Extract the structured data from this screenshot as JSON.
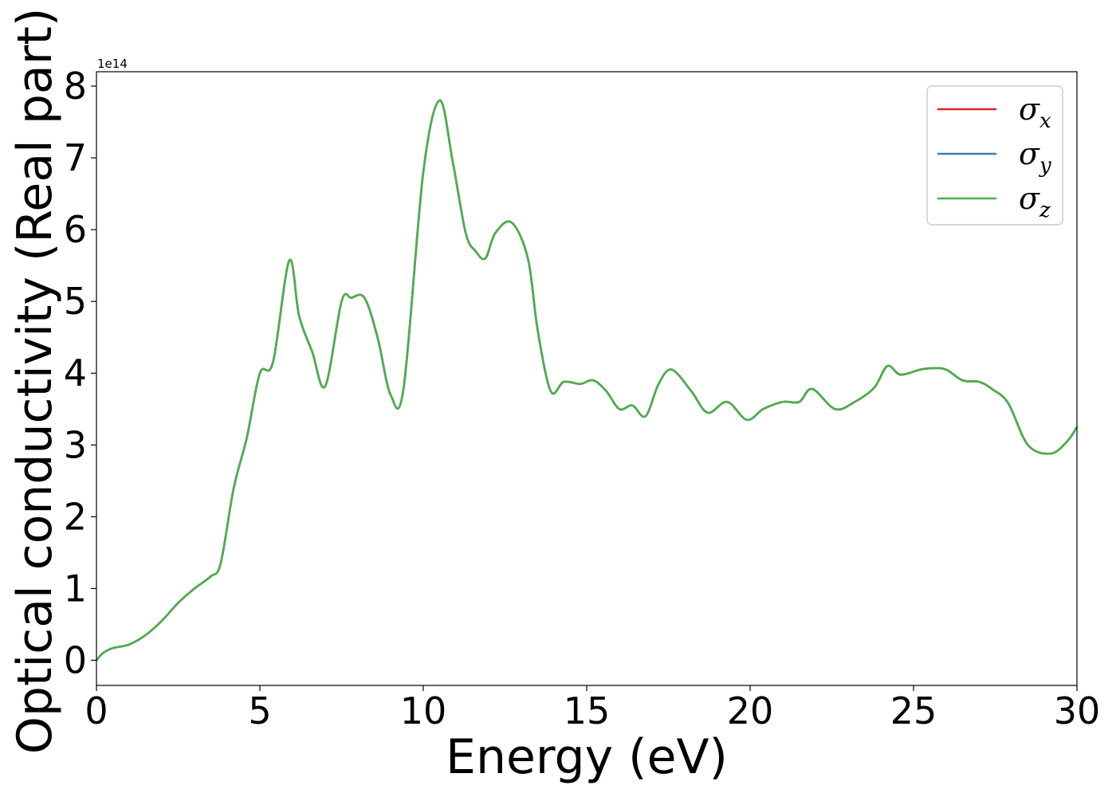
{
  "chart_data": {
    "type": "line",
    "xlabel": "Energy (eV)",
    "ylabel": "Optical conductivity (Real part)",
    "y_offset_label": "1e14",
    "xlim": [
      0,
      30
    ],
    "ylim": [
      -0.35,
      8.2
    ],
    "xticks": [
      0,
      5,
      10,
      15,
      20,
      25,
      30
    ],
    "xtick_labels": [
      "0",
      "5",
      "10",
      "15",
      "20",
      "25",
      "30"
    ],
    "yticks": [
      0,
      1,
      2,
      3,
      4,
      5,
      6,
      7,
      8
    ],
    "ytick_labels": [
      "0",
      "1",
      "2",
      "3",
      "4",
      "5",
      "6",
      "7",
      "8"
    ],
    "grid": false,
    "legend_position": "top-right",
    "x": [
      0,
      0.2,
      0.5,
      1.0,
      1.5,
      2.0,
      2.5,
      3.0,
      3.5,
      3.8,
      4.2,
      4.6,
      5.0,
      5.4,
      5.9,
      6.2,
      6.6,
      7.0,
      7.5,
      7.8,
      8.2,
      8.6,
      9.0,
      9.4,
      10.0,
      10.5,
      10.9,
      11.3,
      11.6,
      11.9,
      12.2,
      12.7,
      13.2,
      13.5,
      13.9,
      14.3,
      14.8,
      15.2,
      15.6,
      16.0,
      16.4,
      16.8,
      17.2,
      17.6,
      18.2,
      18.7,
      19.3,
      19.9,
      20.4,
      21.0,
      21.5,
      21.9,
      22.6,
      23.2,
      23.8,
      24.2,
      24.6,
      25.2,
      25.6,
      26.0,
      26.5,
      27.0,
      27.4,
      27.9,
      28.5,
      29.2,
      29.7,
      30.0
    ],
    "series": [
      {
        "name": "σx",
        "values": [
          0.0,
          0.1,
          0.17,
          0.22,
          0.35,
          0.55,
          0.8,
          1.0,
          1.17,
          1.35,
          2.4,
          3.1,
          4.0,
          4.15,
          5.57,
          4.8,
          4.3,
          3.82,
          5.0,
          5.05,
          5.05,
          4.5,
          3.7,
          3.8,
          6.8,
          7.8,
          6.95,
          5.95,
          5.7,
          5.6,
          5.95,
          6.1,
          5.6,
          4.6,
          3.75,
          3.88,
          3.85,
          3.9,
          3.75,
          3.5,
          3.55,
          3.4,
          3.85,
          4.05,
          3.75,
          3.45,
          3.6,
          3.35,
          3.5,
          3.6,
          3.6,
          3.78,
          3.5,
          3.6,
          3.8,
          4.1,
          3.98,
          4.05,
          4.07,
          4.05,
          3.9,
          3.88,
          3.78,
          3.58,
          3.0,
          2.88,
          3.05,
          3.25
        ],
        "color": "#d62728"
      },
      {
        "name": "σy",
        "values": [
          0.0,
          0.1,
          0.17,
          0.22,
          0.35,
          0.55,
          0.8,
          1.0,
          1.17,
          1.35,
          2.4,
          3.1,
          4.0,
          4.15,
          5.57,
          4.8,
          4.3,
          3.82,
          5.0,
          5.05,
          5.05,
          4.5,
          3.7,
          3.8,
          6.8,
          7.8,
          6.95,
          5.95,
          5.7,
          5.6,
          5.95,
          6.1,
          5.6,
          4.6,
          3.75,
          3.88,
          3.85,
          3.9,
          3.75,
          3.5,
          3.55,
          3.4,
          3.85,
          4.05,
          3.75,
          3.45,
          3.6,
          3.35,
          3.5,
          3.6,
          3.6,
          3.78,
          3.5,
          3.6,
          3.8,
          4.1,
          3.98,
          4.05,
          4.07,
          4.05,
          3.9,
          3.88,
          3.78,
          3.58,
          3.0,
          2.88,
          3.05,
          3.25
        ],
        "color": "#377eb8"
      },
      {
        "name": "σz",
        "values": [
          0.0,
          0.1,
          0.17,
          0.22,
          0.35,
          0.55,
          0.8,
          1.0,
          1.17,
          1.35,
          2.4,
          3.1,
          4.0,
          4.15,
          5.57,
          4.8,
          4.3,
          3.82,
          5.0,
          5.05,
          5.05,
          4.5,
          3.7,
          3.8,
          6.8,
          7.8,
          6.95,
          5.95,
          5.7,
          5.6,
          5.95,
          6.1,
          5.6,
          4.6,
          3.75,
          3.88,
          3.85,
          3.9,
          3.75,
          3.5,
          3.55,
          3.4,
          3.85,
          4.05,
          3.75,
          3.45,
          3.6,
          3.35,
          3.5,
          3.6,
          3.6,
          3.78,
          3.5,
          3.6,
          3.8,
          4.1,
          3.98,
          4.05,
          4.07,
          4.05,
          3.9,
          3.88,
          3.78,
          3.58,
          3.0,
          2.88,
          3.05,
          3.25
        ],
        "color": "#4daf4a"
      }
    ],
    "legend": [
      {
        "symbol": "σ",
        "sub": "x",
        "color": "#d62728"
      },
      {
        "symbol": "σ",
        "sub": "y",
        "color": "#377eb8"
      },
      {
        "symbol": "σ",
        "sub": "z",
        "color": "#4daf4a"
      }
    ]
  }
}
